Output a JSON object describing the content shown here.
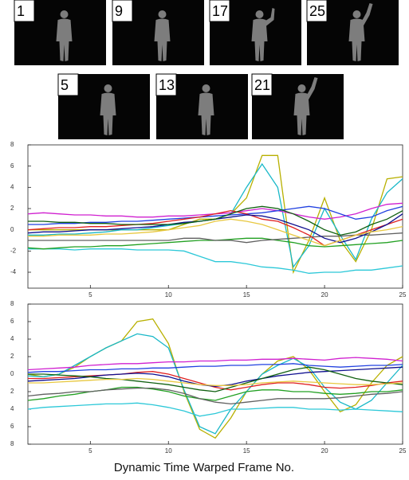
{
  "frames": [
    1,
    9,
    17,
    25,
    5,
    13,
    21
  ],
  "chart_data": [
    {
      "type": "line",
      "x": [
        1,
        2,
        3,
        4,
        5,
        6,
        7,
        8,
        9,
        10,
        11,
        12,
        13,
        14,
        15,
        16,
        17,
        18,
        19,
        20,
        21,
        22,
        23,
        24,
        25
      ],
      "xlim": [
        1,
        25
      ],
      "xticks": [
        5,
        10,
        15,
        20,
        25
      ],
      "ylim": [
        -5.5,
        8
      ],
      "yticks": [
        -4,
        -2,
        0,
        2,
        4,
        6,
        8
      ],
      "series": [
        {
          "color": "#b8b000",
          "values": [
            0,
            0,
            0,
            0,
            0,
            0,
            0,
            0,
            0,
            0,
            0.5,
            1,
            1,
            1.5,
            3,
            7,
            7,
            -4,
            -1,
            3,
            -1,
            -3,
            0,
            4.8,
            5
          ]
        },
        {
          "color": "#19b8c8",
          "values": [
            -0.5,
            -0.5,
            -0.4,
            -0.4,
            -0.3,
            -0.2,
            0,
            0,
            0.2,
            0.4,
            0.6,
            0.8,
            1,
            1.5,
            4,
            6.2,
            4,
            -3.5,
            -1.5,
            2,
            -0.5,
            -2.8,
            1,
            3.5,
            4.8
          ]
        },
        {
          "color": "#2cc8d8",
          "values": [
            -1.8,
            -1.8,
            -1.8,
            -1.9,
            -1.8,
            -1.8,
            -1.8,
            -1.9,
            -1.9,
            -1.9,
            -2,
            -2.5,
            -3,
            -3,
            -3.2,
            -3.5,
            -3.6,
            -3.8,
            -4.1,
            -4,
            -4,
            -3.8,
            -3.8,
            -3.6,
            -3.4
          ]
        },
        {
          "color": "#22a022",
          "values": [
            -1.7,
            -1.8,
            -1.7,
            -1.6,
            -1.6,
            -1.5,
            -1.5,
            -1.4,
            -1.3,
            -1.2,
            -1.1,
            -1,
            -1,
            -0.9,
            -0.8,
            -0.8,
            -1,
            -1.2,
            -1.5,
            -1.6,
            -1.5,
            -1.4,
            -1.3,
            -1.2,
            -1
          ]
        },
        {
          "color": "#606060",
          "values": [
            -1,
            -1,
            -1,
            -1,
            -1,
            -1,
            -1,
            -1,
            -1,
            -1,
            -0.8,
            -0.8,
            -1,
            -1,
            -1.2,
            -1,
            -0.9,
            -0.8,
            -0.7,
            -0.6,
            -0.6,
            -0.5,
            -0.5,
            -0.4,
            -0.3
          ]
        },
        {
          "color": "#d020d0",
          "values": [
            1.5,
            1.6,
            1.5,
            1.4,
            1.4,
            1.3,
            1.3,
            1.2,
            1.2,
            1.3,
            1.3,
            1.4,
            1.5,
            1.6,
            1.8,
            2,
            1.8,
            1.5,
            1.2,
            1,
            1.2,
            1.5,
            2,
            2.4,
            2.5
          ]
        },
        {
          "color": "#2040e0",
          "values": [
            0.5,
            0.5,
            0.6,
            0.6,
            0.7,
            0.7,
            0.8,
            0.8,
            0.9,
            1,
            1.1,
            1.2,
            1.3,
            1.4,
            1.5,
            1.6,
            1.8,
            2,
            2.2,
            2,
            1.5,
            1,
            1.2,
            1.8,
            2.2
          ]
        },
        {
          "color": "#e02020",
          "values": [
            0,
            0.1,
            0.2,
            0.2,
            0.3,
            0.3,
            0.4,
            0.5,
            0.6,
            0.8,
            1,
            1.2,
            1.5,
            1.8,
            1.5,
            1,
            0.8,
            0.2,
            -0.5,
            -1.5,
            -1,
            -0.5,
            0,
            0.5,
            1
          ]
        },
        {
          "color": "#101090",
          "values": [
            -0.3,
            -0.2,
            -0.2,
            -0.1,
            0,
            0,
            0.1,
            0.2,
            0.3,
            0.5,
            0.7,
            0.8,
            1,
            1.2,
            1.4,
            1.3,
            1,
            0.5,
            0,
            -0.8,
            -1.2,
            -0.8,
            -0.2,
            0.5,
            1.5
          ]
        },
        {
          "color": "#106010",
          "values": [
            0.8,
            0.8,
            0.7,
            0.7,
            0.6,
            0.6,
            0.5,
            0.5,
            0.5,
            0.5,
            0.6,
            0.8,
            1,
            1.5,
            2,
            2.2,
            2,
            1.5,
            0.8,
            0,
            -0.5,
            -0.2,
            0.5,
            1,
            1.8
          ]
        },
        {
          "color": "#e8c840",
          "values": [
            -0.6,
            -0.6,
            -0.5,
            -0.5,
            -0.5,
            -0.4,
            -0.4,
            -0.3,
            -0.2,
            0,
            0.2,
            0.4,
            0.8,
            1,
            0.8,
            0.5,
            0,
            -0.5,
            -1,
            -1.5,
            -1,
            -0.5,
            -0.2,
            0,
            0.3
          ]
        }
      ]
    },
    {
      "type": "line",
      "x": [
        1,
        2,
        3,
        4,
        5,
        6,
        7,
        8,
        9,
        10,
        11,
        12,
        13,
        14,
        15,
        16,
        17,
        18,
        19,
        20,
        21,
        22,
        23,
        24,
        25
      ],
      "xlim": [
        1,
        25
      ],
      "xticks": [
        5,
        10,
        15,
        20,
        25
      ],
      "ylim": [
        -8,
        8
      ],
      "yticks": [
        {
          "value": -8,
          "label": "8"
        },
        {
          "value": -6,
          "label": "6"
        },
        {
          "value": -4,
          "label": "4"
        },
        {
          "value": -2,
          "label": "2"
        },
        0,
        2,
        4,
        6,
        8
      ],
      "series": [
        {
          "color": "#b8b000",
          "values": [
            0,
            -0.3,
            0,
            0.8,
            2,
            3,
            3.8,
            6,
            6.3,
            3.5,
            -2,
            -6.3,
            -7.3,
            -5,
            -2,
            0,
            1.5,
            2,
            0.5,
            -2,
            -4.3,
            -3.5,
            -1,
            1,
            2
          ]
        },
        {
          "color": "#19b8c8",
          "values": [
            -0.2,
            -0.3,
            0,
            1,
            2,
            3,
            3.8,
            4.6,
            4.3,
            3,
            -1.8,
            -6,
            -6.8,
            -4,
            -2,
            0,
            1,
            1.8,
            0.8,
            -1.5,
            -3.2,
            -4,
            -3,
            -1,
            1
          ]
        },
        {
          "color": "#2cc8d8",
          "values": [
            -4,
            -3.8,
            -3.7,
            -3.6,
            -3.5,
            -3.4,
            -3.4,
            -3.3,
            -3.5,
            -3.8,
            -4.2,
            -4.8,
            -4.5,
            -4,
            -4,
            -3.9,
            -3.8,
            -3.8,
            -4,
            -4,
            -4.1,
            -4,
            -4.1,
            -4.2,
            -4.3
          ]
        },
        {
          "color": "#22a022",
          "values": [
            -3,
            -2.8,
            -2.5,
            -2.3,
            -2,
            -1.8,
            -1.5,
            -1.5,
            -1.7,
            -2,
            -2.5,
            -2.8,
            -3,
            -2.5,
            -2,
            -1.8,
            -1.8,
            -2,
            -2,
            -2.2,
            -2.3,
            -2.2,
            -2,
            -2,
            -1.8
          ]
        },
        {
          "color": "#606060",
          "values": [
            -2.5,
            -2.3,
            -2.2,
            -2,
            -2,
            -1.8,
            -1.7,
            -1.6,
            -1.6,
            -1.8,
            -2.2,
            -2.8,
            -3.2,
            -3.4,
            -3.2,
            -3,
            -2.8,
            -2.8,
            -2.8,
            -2.8,
            -2.7,
            -2.5,
            -2.3,
            -2.2,
            -2
          ]
        },
        {
          "color": "#d020d0",
          "values": [
            0.5,
            0.6,
            0.7,
            0.8,
            1,
            1.1,
            1.2,
            1.2,
            1.3,
            1.4,
            1.4,
            1.5,
            1.5,
            1.6,
            1.6,
            1.7,
            1.7,
            1.8,
            1.7,
            1.6,
            1.8,
            1.9,
            1.8,
            1.7,
            1.5
          ]
        },
        {
          "color": "#2040e0",
          "values": [
            0.2,
            0.3,
            0.3,
            0.4,
            0.5,
            0.5,
            0.6,
            0.6,
            0.7,
            0.7,
            0.8,
            0.9,
            0.9,
            1,
            1,
            1.1,
            1.1,
            1.2,
            1,
            0.9,
            0.8,
            0.9,
            1,
            1,
            1.1
          ]
        },
        {
          "color": "#e02020",
          "values": [
            -0.5,
            -0.5,
            -0.4,
            -0.3,
            -0.2,
            -0.1,
            0,
            0.2,
            0.3,
            0,
            -0.5,
            -1,
            -1.5,
            -1.8,
            -1.5,
            -1.2,
            -1,
            -1,
            -1.2,
            -1.5,
            -1.6,
            -1.5,
            -1.3,
            -1,
            -0.8
          ]
        },
        {
          "color": "#101090",
          "values": [
            -0.8,
            -0.7,
            -0.6,
            -0.5,
            -0.3,
            -0.1,
            0,
            0.1,
            0,
            -0.3,
            -0.8,
            -1.2,
            -1.4,
            -1.2,
            -0.8,
            -0.5,
            -0.2,
            0,
            0.2,
            0.3,
            0.4,
            0.5,
            0.6,
            0.7,
            0.8
          ]
        },
        {
          "color": "#106010",
          "values": [
            0,
            0,
            -0.1,
            -0.2,
            -0.3,
            -0.5,
            -0.6,
            -0.8,
            -1,
            -1.2,
            -1.5,
            -1.8,
            -2,
            -1.5,
            -1,
            -0.5,
            0,
            0.5,
            0.8,
            0.5,
            0,
            -0.5,
            -0.8,
            -1,
            -1.2
          ]
        },
        {
          "color": "#e8c840",
          "values": [
            -1,
            -1,
            -0.9,
            -0.8,
            -0.7,
            -0.6,
            -0.6,
            -0.5,
            -0.6,
            -0.8,
            -1,
            -1.2,
            -1.3,
            -1.3,
            -1.2,
            -1,
            -0.9,
            -0.8,
            -0.9,
            -1,
            -1.1,
            -1.2,
            -1.2,
            -1.1,
            -1
          ]
        }
      ]
    }
  ],
  "caption": "Dynamic Time Warped Frame No."
}
